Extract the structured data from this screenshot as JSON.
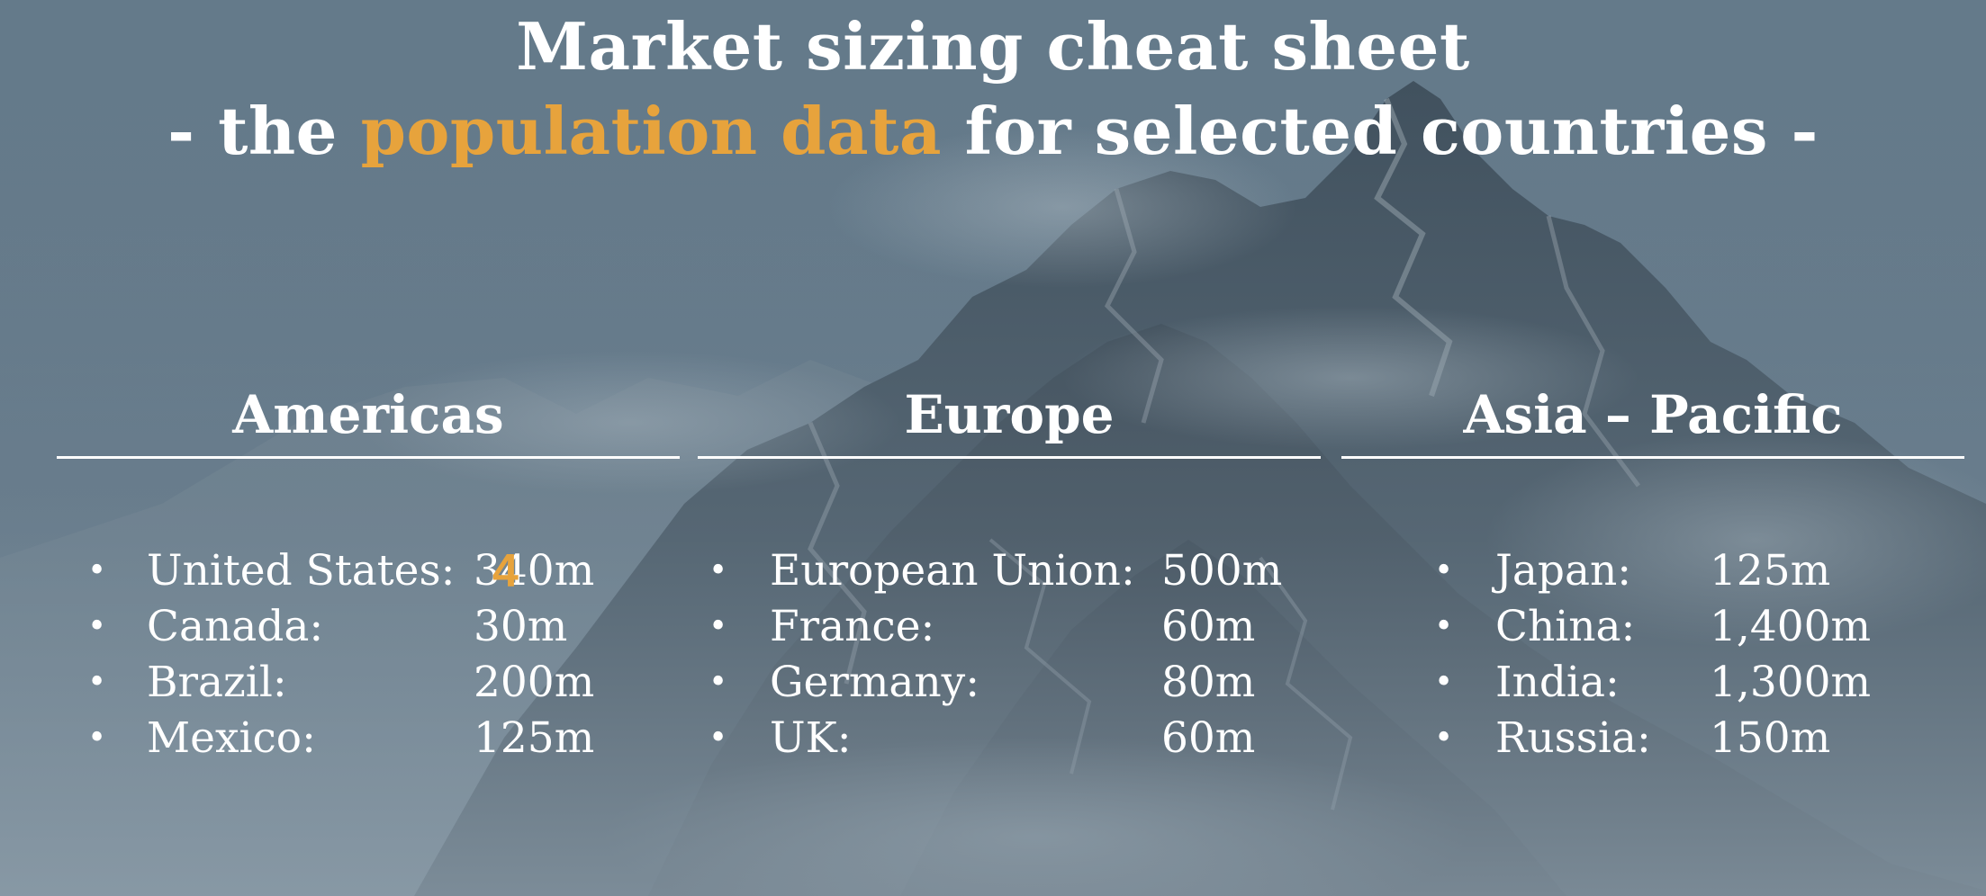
{
  "title": {
    "line1": "Market sizing cheat sheet",
    "line2_prefix": "- the ",
    "line2_highlight": "population data",
    "line2_suffix": " for selected countries -"
  },
  "colors": {
    "accent": "#e7a33c",
    "text": "#ffffff",
    "background": "#5d7283"
  },
  "regions": [
    {
      "heading": "Americas",
      "items": [
        {
          "country": "United States:",
          "value": "340m"
        },
        {
          "country": "Canada:",
          "value": "30m"
        },
        {
          "country": "Brazil:",
          "value": "200m"
        },
        {
          "country": "Mexico:",
          "value": "125m"
        }
      ]
    },
    {
      "heading": "Europe",
      "items": [
        {
          "country": "European Union:",
          "value": "500m"
        },
        {
          "country": "France:",
          "value": "60m"
        },
        {
          "country": "Germany:",
          "value": "80m"
        },
        {
          "country": "UK:",
          "value": "60m"
        }
      ]
    },
    {
      "heading": "Asia – Pacific",
      "items": [
        {
          "country": "Japan:",
          "value": "125m"
        },
        {
          "country": "China:",
          "value": "1,400m"
        },
        {
          "country": "India:",
          "value": "1,300m"
        },
        {
          "country": "Russia:",
          "value": "150m"
        }
      ]
    }
  ],
  "bullet": "•",
  "cursor_marker": "4"
}
